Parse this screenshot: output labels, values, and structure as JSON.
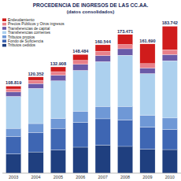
{
  "chart_data": {
    "type": "bar",
    "stacked": true,
    "title": "PROCEDENCIA DE INGRESOS DE LAS CC.AA.",
    "subtitle": "(datos consolidados)",
    "categories": [
      "2003",
      "2004",
      "2005",
      "2006",
      "2007",
      "2008",
      "2009",
      "2010"
    ],
    "series": [
      {
        "name": "Tributos cedidos",
        "color": "#1f3f7f",
        "values": [
          24000,
          26500,
          29000,
          32500,
          35000,
          33500,
          30000,
          29500
        ]
      },
      {
        "name": "Fondo de Suficiencia",
        "color": "#3e66b3",
        "values": [
          22000,
          24500,
          27000,
          31000,
          33000,
          33000,
          27500,
          25000
        ]
      },
      {
        "name": "Tributos propios",
        "color": "#6f98d6",
        "values": [
          10000,
          11000,
          12500,
          14000,
          15500,
          17000,
          15000,
          14500
        ]
      },
      {
        "name": "Transferencias corrientes",
        "color": "#acd0ee",
        "values": [
          40000,
          44000,
          47000,
          51000,
          56000,
          64000,
          52000,
          71590
        ]
      },
      {
        "name": "Transferencias de capital",
        "color": "#6a5aa8",
        "values": [
          5500,
          6000,
          7000,
          7500,
          7500,
          8100,
          7000,
          7716
        ]
      },
      {
        "name": "Precios Públicos y Otros ingresos",
        "color": "#e8808a",
        "values": [
          3800,
          4100,
          4500,
          5100,
          5500,
          5300,
          5500,
          6000
        ]
      },
      {
        "name": "Endeudamiento",
        "color": "#d01c1c",
        "values": [
          3519,
          4252,
          5908,
          7384,
          8044,
          12571,
          24690,
          29436
        ]
      }
    ],
    "totals": [
      108819,
      120352,
      132908,
      148484,
      160544,
      173471,
      161690,
      183742
    ],
    "total_labels": [
      "108.819",
      "120.352",
      "132.908",
      "148.484",
      "160.544",
      "173.471",
      "161.690",
      "183.742"
    ],
    "ylim": [
      0,
      190000
    ],
    "grid": false,
    "tick_labels": "x",
    "legend": "upper left"
  }
}
